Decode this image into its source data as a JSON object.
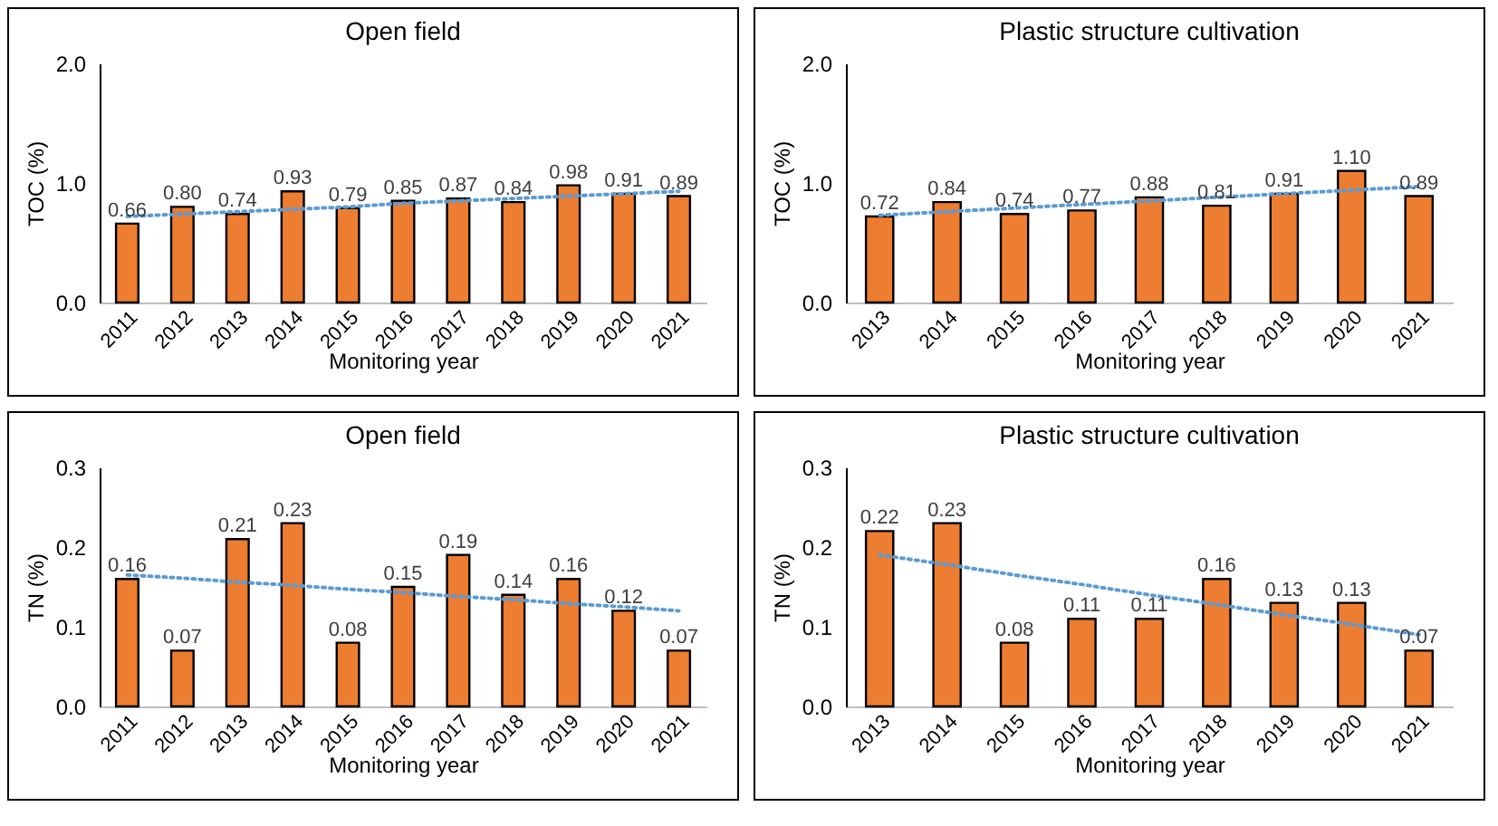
{
  "chart_data": [
    {
      "type": "bar",
      "title": "Open field",
      "xlabel": "Monitoring year",
      "ylabel": "TOC (%)",
      "categories": [
        "2011",
        "2012",
        "2013",
        "2014",
        "2015",
        "2016",
        "2017",
        "2018",
        "2019",
        "2020",
        "2021"
      ],
      "series": [
        {
          "color": "#ed7d31",
          "values": [
            0.66,
            0.8,
            0.74,
            0.93,
            0.79,
            0.85,
            0.87,
            0.84,
            0.98,
            0.91,
            0.89
          ],
          "value_labels": [
            "0.66",
            "0.80",
            "0.74",
            "0.93",
            "0.79",
            "0.85",
            "0.87",
            "0.84",
            "0.98",
            "0.91",
            "0.89"
          ]
        },
        {
          "type": "line",
          "color": "#5b9bd5",
          "line_style": "dotted",
          "values": [
            0.72,
            0.74,
            0.76,
            0.78,
            0.8,
            0.83,
            0.85,
            0.87,
            0.89,
            0.91,
            0.93
          ]
        }
      ],
      "ylim": [
        0,
        2
      ],
      "yticks": [
        {
          "value": 0,
          "label": "0.0"
        },
        {
          "value": 1,
          "label": "1.0"
        },
        {
          "value": 2,
          "label": "2.0"
        }
      ],
      "grid": false
    },
    {
      "type": "bar",
      "title": "Plastic structure cultivation",
      "xlabel": "Monitoring year",
      "ylabel": "TOC (%)",
      "categories": [
        "2013",
        "2014",
        "2015",
        "2016",
        "2017",
        "2018",
        "2019",
        "2020",
        "2021"
      ],
      "series": [
        {
          "color": "#ed7d31",
          "values": [
            0.72,
            0.84,
            0.74,
            0.77,
            0.88,
            0.81,
            0.91,
            1.1,
            0.89
          ],
          "value_labels": [
            "0.72",
            "0.84",
            "0.74",
            "0.77",
            "0.88",
            "0.81",
            "0.91",
            "1.10",
            "0.89"
          ]
        },
        {
          "type": "line",
          "color": "#5b9bd5",
          "line_style": "dotted",
          "values": [
            0.73,
            0.76,
            0.79,
            0.82,
            0.85,
            0.88,
            0.91,
            0.94,
            0.97
          ]
        }
      ],
      "ylim": [
        0,
        2
      ],
      "yticks": [
        {
          "value": 0,
          "label": "0.0"
        },
        {
          "value": 1,
          "label": "1.0"
        },
        {
          "value": 2,
          "label": "2.0"
        }
      ],
      "grid": false
    },
    {
      "type": "bar",
      "title": "Open field",
      "xlabel": "Monitoring year",
      "ylabel": "TN (%)",
      "categories": [
        "2011",
        "2012",
        "2013",
        "2014",
        "2015",
        "2016",
        "2017",
        "2018",
        "2019",
        "2020",
        "2021"
      ],
      "series": [
        {
          "color": "#ed7d31",
          "values": [
            0.16,
            0.07,
            0.21,
            0.23,
            0.08,
            0.15,
            0.19,
            0.14,
            0.16,
            0.12,
            0.07
          ],
          "value_labels": [
            "0.16",
            "0.07",
            "0.21",
            "0.23",
            "0.08",
            "0.15",
            "0.19",
            "0.14",
            "0.16",
            "0.12",
            "0.07"
          ]
        },
        {
          "type": "line",
          "color": "#5b9bd5",
          "line_style": "dotted",
          "values": [
            0.165,
            0.161,
            0.156,
            0.152,
            0.147,
            0.143,
            0.138,
            0.134,
            0.129,
            0.125,
            0.12
          ]
        }
      ],
      "ylim": [
        0,
        0.3
      ],
      "yticks": [
        {
          "value": 0,
          "label": "0.0"
        },
        {
          "value": 0.1,
          "label": "0.1"
        },
        {
          "value": 0.2,
          "label": "0.2"
        },
        {
          "value": 0.3,
          "label": "0.3"
        }
      ],
      "grid": false
    },
    {
      "type": "bar",
      "title": "Plastic structure cultivation",
      "xlabel": "Monitoring year",
      "ylabel": "TN (%)",
      "categories": [
        "2013",
        "2014",
        "2015",
        "2016",
        "2017",
        "2018",
        "2019",
        "2020",
        "2021"
      ],
      "series": [
        {
          "color": "#ed7d31",
          "values": [
            0.22,
            0.23,
            0.08,
            0.11,
            0.11,
            0.16,
            0.13,
            0.13,
            0.07
          ],
          "value_labels": [
            "0.22",
            "0.23",
            "0.08",
            "0.11",
            "0.11",
            "0.16",
            "0.13",
            "0.13",
            "0.07"
          ]
        },
        {
          "type": "line",
          "color": "#5b9bd5",
          "line_style": "dotted",
          "values": [
            0.19,
            0.178,
            0.165,
            0.153,
            0.14,
            0.128,
            0.115,
            0.103,
            0.09
          ]
        }
      ],
      "ylim": [
        0,
        0.3
      ],
      "yticks": [
        {
          "value": 0,
          "label": "0.0"
        },
        {
          "value": 0.1,
          "label": "0.1"
        },
        {
          "value": 0.2,
          "label": "0.2"
        },
        {
          "value": 0.3,
          "label": "0.3"
        }
      ],
      "grid": false
    }
  ]
}
